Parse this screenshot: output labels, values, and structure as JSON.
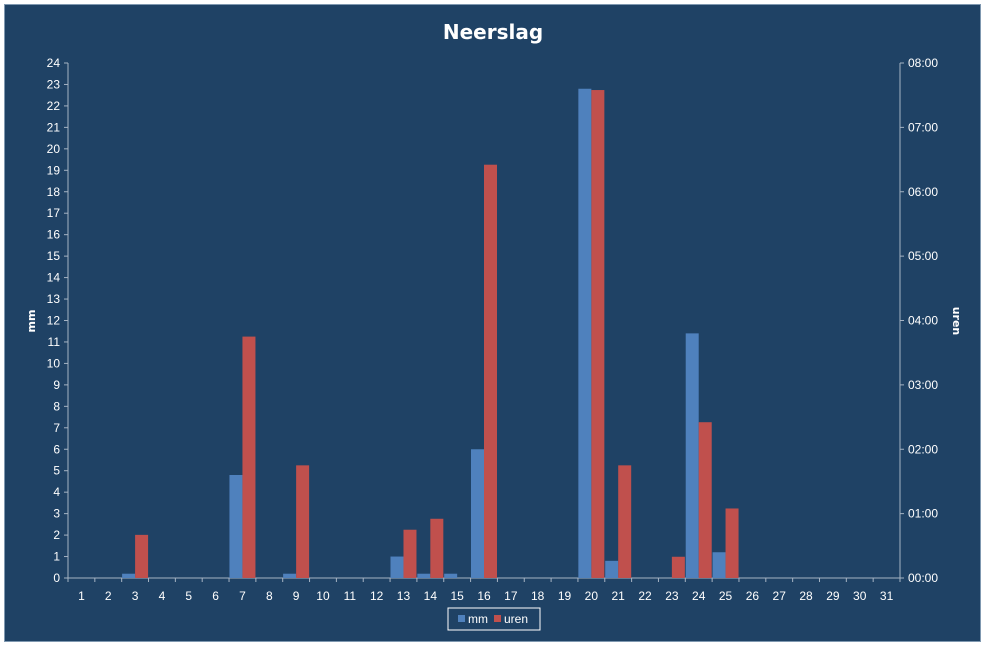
{
  "chart_data": {
    "type": "bar",
    "title": "Neerslag",
    "ylabel": "mm",
    "y2label": "uren",
    "categories": [
      "1",
      "2",
      "3",
      "4",
      "5",
      "6",
      "7",
      "8",
      "9",
      "10",
      "11",
      "12",
      "13",
      "14",
      "15",
      "16",
      "17",
      "18",
      "19",
      "20",
      "21",
      "22",
      "23",
      "24",
      "25",
      "26",
      "27",
      "28",
      "29",
      "30",
      "31"
    ],
    "ylim": [
      0,
      24
    ],
    "y_ticks": [
      "0",
      "1",
      "2",
      "3",
      "4",
      "5",
      "6",
      "7",
      "8",
      "9",
      "10",
      "11",
      "12",
      "13",
      "14",
      "15",
      "16",
      "17",
      "18",
      "19",
      "20",
      "21",
      "22",
      "23",
      "24"
    ],
    "y2lim_hours": [
      0,
      8
    ],
    "y2_ticks": [
      "00:00",
      "01:00",
      "02:00",
      "03:00",
      "04:00",
      "05:00",
      "06:00",
      "07:00",
      "08:00"
    ],
    "series": [
      {
        "name": "mm",
        "color": "#4f81bd",
        "axis": "left",
        "values": [
          0,
          0,
          0.2,
          0,
          0,
          0,
          4.8,
          0,
          0.2,
          0,
          0,
          0,
          1.0,
          0.2,
          0.2,
          6.0,
          0,
          0,
          0,
          22.8,
          0.8,
          0,
          0,
          11.4,
          1.2,
          0,
          0,
          0,
          0,
          0,
          0
        ]
      },
      {
        "name": "uren",
        "color": "#c0504d",
        "axis": "right",
        "unit": "hours",
        "values": [
          0,
          0,
          0.67,
          0,
          0,
          0,
          3.75,
          0,
          1.75,
          0,
          0,
          0,
          0.75,
          0.92,
          0,
          6.42,
          0,
          0,
          0,
          7.58,
          1.75,
          0,
          0.33,
          2.42,
          1.08,
          0,
          0,
          0,
          0,
          0,
          0
        ]
      }
    ],
    "legend_position": "bottom",
    "grid": false
  }
}
